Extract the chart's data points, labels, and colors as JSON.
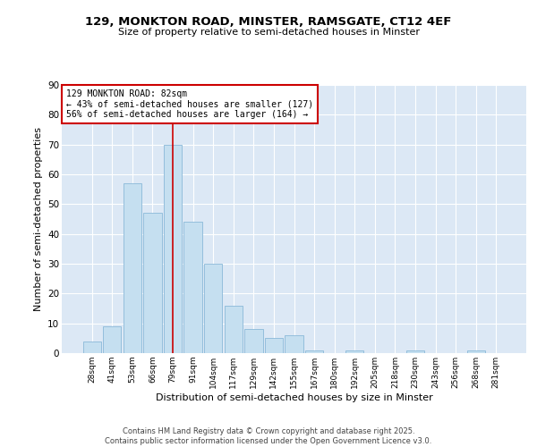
{
  "title_line1": "129, MONKTON ROAD, MINSTER, RAMSGATE, CT12 4EF",
  "title_line2": "Size of property relative to semi-detached houses in Minster",
  "xlabel": "Distribution of semi-detached houses by size in Minster",
  "ylabel": "Number of semi-detached properties",
  "bar_labels": [
    "28sqm",
    "41sqm",
    "53sqm",
    "66sqm",
    "79sqm",
    "91sqm",
    "104sqm",
    "117sqm",
    "129sqm",
    "142sqm",
    "155sqm",
    "167sqm",
    "180sqm",
    "192sqm",
    "205sqm",
    "218sqm",
    "230sqm",
    "243sqm",
    "256sqm",
    "268sqm",
    "281sqm"
  ],
  "bar_values": [
    4,
    9,
    57,
    47,
    70,
    44,
    30,
    16,
    8,
    5,
    6,
    1,
    0,
    1,
    0,
    0,
    1,
    0,
    0,
    1,
    0
  ],
  "bar_color": "#c5dff0",
  "bar_edge_color": "#8ab8d8",
  "highlight_bar_index": 4,
  "vline_color": "#cc0000",
  "annotation_title": "129 MONKTON ROAD: 82sqm",
  "annotation_line1": "← 43% of semi-detached houses are smaller (127)",
  "annotation_line2": "56% of semi-detached houses are larger (164) →",
  "annotation_box_facecolor": "#ffffff",
  "annotation_box_edgecolor": "#cc0000",
  "ylim": [
    0,
    90
  ],
  "yticks": [
    0,
    10,
    20,
    30,
    40,
    50,
    60,
    70,
    80,
    90
  ],
  "plot_bg_color": "#dce8f5",
  "grid_color": "#ffffff",
  "footer_line1": "Contains HM Land Registry data © Crown copyright and database right 2025.",
  "footer_line2": "Contains public sector information licensed under the Open Government Licence v3.0."
}
